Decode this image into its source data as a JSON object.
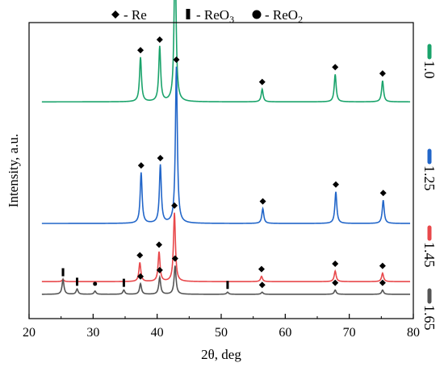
{
  "chart_data": {
    "type": "line",
    "title": "",
    "xlabel": "2θ, deg",
    "ylabel": "Intensity, a.u.",
    "xlim": [
      20,
      80
    ],
    "x_ticks": [
      20,
      30,
      40,
      50,
      60,
      70,
      80
    ],
    "y_ticks_shown": false,
    "grid": false,
    "legend_position": "right",
    "top_legend": [
      {
        "marker": "diamond",
        "label": "- Re"
      },
      {
        "marker": "bar",
        "label": "- ReO",
        "subscript": "3"
      },
      {
        "marker": "circle",
        "label": "- ReO",
        "subscript": "2"
      }
    ],
    "series": [
      {
        "name": "1.0",
        "color": "#1aa36b",
        "baseline": 0.85,
        "peaks": [
          {
            "x": 37.4,
            "h": 0.42,
            "marker": "diamond"
          },
          {
            "x": 40.4,
            "h": 0.52,
            "marker": "diamond"
          },
          {
            "x": 42.8,
            "h": 1.48,
            "marker": "diamond"
          },
          {
            "x": 56.4,
            "h": 0.12,
            "marker": "diamond"
          },
          {
            "x": 67.8,
            "h": 0.26,
            "marker": "diamond"
          },
          {
            "x": 75.2,
            "h": 0.2,
            "marker": "diamond"
          }
        ]
      },
      {
        "name": "1.25",
        "color": "#2266c9",
        "baseline": -0.3,
        "peaks": [
          {
            "x": 37.5,
            "h": 0.48,
            "marker": "diamond"
          },
          {
            "x": 40.5,
            "h": 0.55,
            "marker": "diamond"
          },
          {
            "x": 43.0,
            "h": 1.48,
            "marker": "diamond"
          },
          {
            "x": 56.5,
            "h": 0.14,
            "marker": "diamond"
          },
          {
            "x": 67.9,
            "h": 0.3,
            "marker": "diamond"
          },
          {
            "x": 75.3,
            "h": 0.22,
            "marker": "diamond"
          }
        ]
      },
      {
        "name": "1.45",
        "color": "#e8484b",
        "baseline": -0.85,
        "peaks": [
          {
            "x": 25.3,
            "h": 0.02,
            "marker": "bar"
          },
          {
            "x": 37.3,
            "h": 0.18,
            "marker": "diamond"
          },
          {
            "x": 40.3,
            "h": 0.28,
            "marker": "diamond"
          },
          {
            "x": 42.7,
            "h": 0.65,
            "marker": "diamond"
          },
          {
            "x": 56.3,
            "h": 0.05,
            "marker": "diamond"
          },
          {
            "x": 67.8,
            "h": 0.1,
            "marker": "diamond"
          },
          {
            "x": 75.2,
            "h": 0.08,
            "marker": "diamond"
          }
        ]
      },
      {
        "name": "1.65",
        "color": "#555555",
        "baseline": -0.97,
        "peaks": [
          {
            "x": 25.3,
            "h": 0.14,
            "marker": "bar"
          },
          {
            "x": 27.5,
            "h": 0.05,
            "marker": "bar"
          },
          {
            "x": 30.3,
            "h": 0.03,
            "marker": "circle"
          },
          {
            "x": 34.8,
            "h": 0.04,
            "marker": "bar"
          },
          {
            "x": 37.4,
            "h": 0.1,
            "marker": "diamond"
          },
          {
            "x": 40.4,
            "h": 0.16,
            "marker": "diamond"
          },
          {
            "x": 42.8,
            "h": 0.27,
            "marker": "diamond"
          },
          {
            "x": 51.0,
            "h": 0.02,
            "marker": "bar"
          },
          {
            "x": 56.4,
            "h": 0.02,
            "marker": "diamond"
          },
          {
            "x": 67.8,
            "h": 0.04,
            "marker": "diamond"
          },
          {
            "x": 75.2,
            "h": 0.04,
            "marker": "diamond"
          }
        ]
      }
    ]
  }
}
